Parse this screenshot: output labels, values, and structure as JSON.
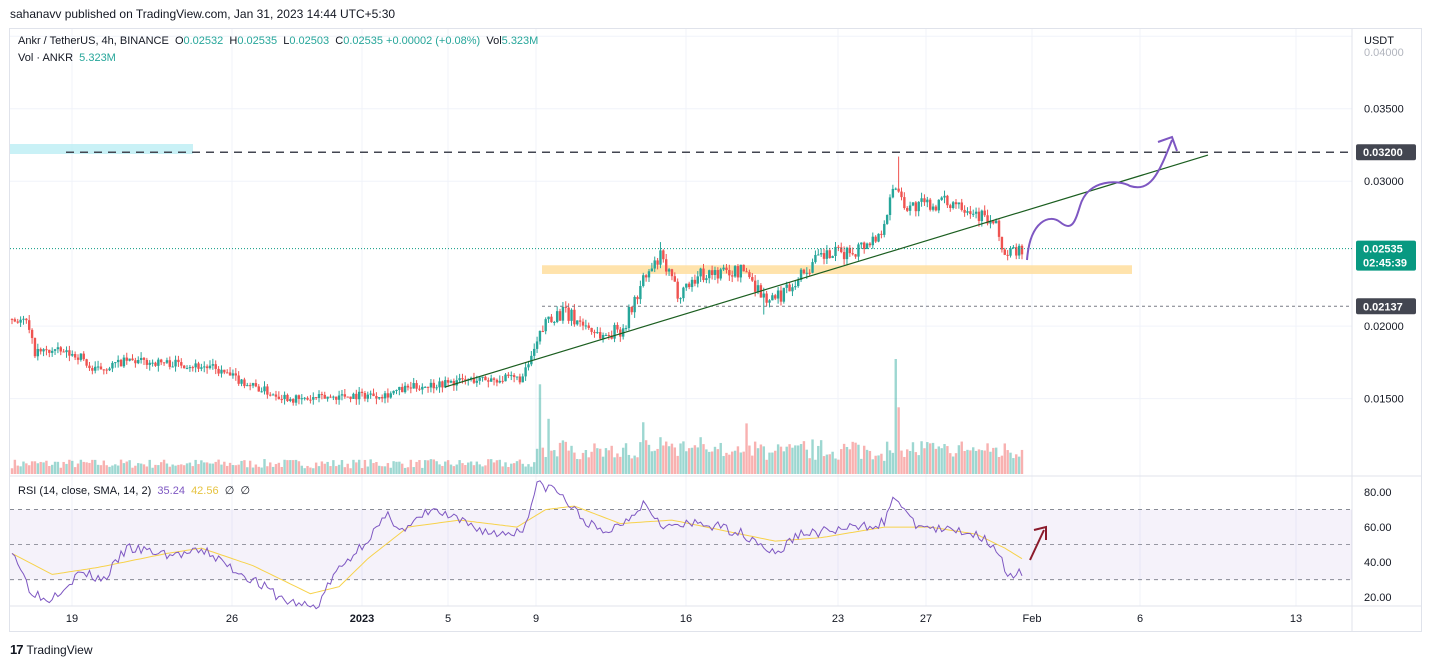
{
  "header": {
    "published": "sahanavv published on TradingView.com, Jan 31, 2023 14:44 UTC+5:30"
  },
  "legend": {
    "symbol": "Ankr / TetherUS, 4h, BINANCE",
    "o_label": "O",
    "o": "0.02532",
    "h_label": "H",
    "h": "0.02535",
    "l_label": "L",
    "l": "0.02503",
    "c_label": "C",
    "c": "0.02535",
    "change": "+0.00002 (+0.08%)",
    "vol_label": "Vol",
    "vol": "5.323M",
    "vol2_label": "Vol · ANKR",
    "vol2": "5.323M",
    "rsi_label": "RSI (14, close, SMA, 14, 2)",
    "rsi": "35.24",
    "rsi_ma": "42.56",
    "rsi_extra1": "∅",
    "rsi_extra2": "∅"
  },
  "footer": {
    "brand": "TradingView",
    "logo": "17"
  },
  "colors": {
    "up": "#26a69a",
    "down": "#ef5350",
    "trend": "#1b5e20",
    "forecast": "#7e57c2",
    "zone": "#ffe0a3",
    "rsi": "#7e57c2",
    "rsi_ma": "#f7d24a",
    "accent": "#089981",
    "arrow": "#8b1a2b"
  },
  "chart_data": [
    {
      "type": "candlestick",
      "title": "Ankr / TetherUS, 4h, BINANCE",
      "y_axis_label": "USDT",
      "y_ticks": [
        "0.01500",
        "0.02000",
        "0.03000",
        "0.03500",
        "0.04000"
      ],
      "x_ticks": [
        "19",
        "26",
        "2023",
        "5",
        "9",
        "16",
        "23",
        "27",
        "Feb",
        "6",
        "13"
      ],
      "ylim": [
        0.0098,
        0.0405
      ],
      "price_labels": [
        {
          "value": 0.032,
          "text": "0.03200",
          "style": "dark"
        },
        {
          "value": 0.02535,
          "text": "0.02535",
          "sub": "02:45:39",
          "style": "green"
        },
        {
          "value": 0.02137,
          "text": "0.02137",
          "style": "dark"
        }
      ],
      "keyframes": [
        [
          0,
          0.0205
        ],
        [
          5,
          0.0203
        ],
        [
          8,
          0.0182
        ],
        [
          15,
          0.0183
        ],
        [
          24,
          0.0179
        ],
        [
          28,
          0.0169
        ],
        [
          40,
          0.0176
        ],
        [
          60,
          0.0174
        ],
        [
          70,
          0.0171
        ],
        [
          80,
          0.0162
        ],
        [
          90,
          0.0154
        ],
        [
          100,
          0.0149
        ],
        [
          115,
          0.0152
        ],
        [
          130,
          0.0153
        ],
        [
          140,
          0.0158
        ],
        [
          160,
          0.0163
        ],
        [
          178,
          0.0164
        ],
        [
          183,
          0.0188
        ],
        [
          187,
          0.0207
        ],
        [
          192,
          0.0209
        ],
        [
          198,
          0.0203
        ],
        [
          206,
          0.0193
        ],
        [
          213,
          0.0199
        ],
        [
          220,
          0.0231
        ],
        [
          226,
          0.0247
        ],
        [
          232,
          0.0223
        ],
        [
          240,
          0.0236
        ],
        [
          248,
          0.0237
        ],
        [
          256,
          0.0238
        ],
        [
          262,
          0.022
        ],
        [
          266,
          0.0218
        ],
        [
          274,
          0.0234
        ],
        [
          282,
          0.0248
        ],
        [
          292,
          0.0251
        ],
        [
          302,
          0.0262
        ],
        [
          308,
          0.0298
        ],
        [
          312,
          0.0282
        ],
        [
          320,
          0.0284
        ],
        [
          330,
          0.0286
        ],
        [
          338,
          0.0276
        ],
        [
          343,
          0.0268
        ],
        [
          346,
          0.0249
        ],
        [
          352,
          0.0253
        ]
      ],
      "wicks": [
        [
          309,
          0.0317
        ],
        [
          226,
          0.0258
        ],
        [
          262,
          0.0208
        ]
      ],
      "volume_spikes": [
        [
          184,
          0.78
        ],
        [
          187,
          0.48
        ],
        [
          220,
          0.45
        ],
        [
          308,
          1.0
        ],
        [
          309,
          0.58
        ],
        [
          226,
          0.32
        ],
        [
          256,
          0.44
        ],
        [
          240,
          0.32
        ]
      ],
      "trendline": {
        "from": [
          0.0158,
          155
        ],
        "to": [
          0.0318,
          415
        ]
      },
      "resistance": {
        "value": 0.032
      },
      "support_dotted": {
        "value": 0.02137
      },
      "zone": {
        "low": 0.0236,
        "high": 0.0242
      },
      "rsi": {
        "ylim": [
          15,
          88
        ],
        "y_ticks": [
          "20.00",
          "40.00",
          "60.00",
          "80.00"
        ],
        "bands": [
          30,
          50,
          70
        ],
        "keyframes": [
          [
            0,
            48
          ],
          [
            6,
            25
          ],
          [
            12,
            18
          ],
          [
            24,
            34
          ],
          [
            32,
            30
          ],
          [
            40,
            48
          ],
          [
            56,
            44
          ],
          [
            68,
            46
          ],
          [
            76,
            37
          ],
          [
            84,
            30
          ],
          [
            95,
            18
          ],
          [
            106,
            14
          ],
          [
            112,
            32
          ],
          [
            122,
            50
          ],
          [
            131,
            66
          ],
          [
            137,
            58
          ],
          [
            146,
            70
          ],
          [
            158,
            62
          ],
          [
            168,
            56
          ],
          [
            178,
            58
          ],
          [
            183,
            84
          ],
          [
            189,
            82
          ],
          [
            198,
            66
          ],
          [
            206,
            56
          ],
          [
            214,
            64
          ],
          [
            220,
            74
          ],
          [
            228,
            60
          ],
          [
            240,
            62
          ],
          [
            252,
            58
          ],
          [
            260,
            52
          ],
          [
            266,
            44
          ],
          [
            274,
            56
          ],
          [
            286,
            58
          ],
          [
            296,
            60
          ],
          [
            304,
            63
          ],
          [
            308,
            78
          ],
          [
            314,
            62
          ],
          [
            324,
            58
          ],
          [
            332,
            58
          ],
          [
            340,
            53
          ],
          [
            344,
            46
          ],
          [
            347,
            30
          ],
          [
            352,
            34
          ]
        ],
        "ma_keyframes": [
          [
            0,
            45
          ],
          [
            14,
            33
          ],
          [
            30,
            37
          ],
          [
            54,
            45
          ],
          [
            66,
            48
          ],
          [
            84,
            38
          ],
          [
            104,
            22
          ],
          [
            114,
            26
          ],
          [
            124,
            42
          ],
          [
            138,
            60
          ],
          [
            156,
            64
          ],
          [
            176,
            60
          ],
          [
            186,
            70
          ],
          [
            196,
            72
          ],
          [
            212,
            62
          ],
          [
            230,
            64
          ],
          [
            248,
            58
          ],
          [
            266,
            52
          ],
          [
            282,
            54
          ],
          [
            304,
            60
          ],
          [
            320,
            60
          ],
          [
            336,
            56
          ],
          [
            346,
            48
          ],
          [
            352,
            42
          ]
        ]
      }
    }
  ]
}
